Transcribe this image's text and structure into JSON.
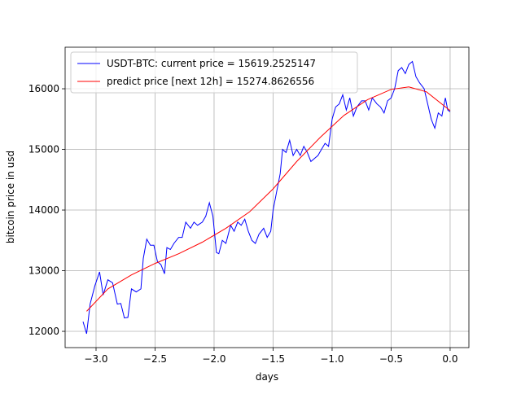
{
  "chart_data": {
    "type": "line",
    "xlabel": "days",
    "ylabel": "bitcoin price in usd",
    "xlim": [
      -3.262,
      0.159
    ],
    "ylim": [
      11732,
      16685
    ],
    "xticks": [
      {
        "value": -3.0,
        "label": "−3.0"
      },
      {
        "value": -2.5,
        "label": "−2.5"
      },
      {
        "value": -2.0,
        "label": "−2.0"
      },
      {
        "value": -1.5,
        "label": "−1.5"
      },
      {
        "value": -1.0,
        "label": "−1.0"
      },
      {
        "value": -0.5,
        "label": "−0.5"
      },
      {
        "value": 0.0,
        "label": "0.0"
      }
    ],
    "yticks": [
      12000,
      13000,
      14000,
      15000,
      16000
    ],
    "grid": true,
    "legend": "upper left",
    "series": [
      {
        "name": "USDT-BTC: current price = 15619.2525147",
        "color": "#0000ff",
        "x": [
          -3.11,
          -3.08,
          -3.05,
          -3.01,
          -2.97,
          -2.94,
          -2.9,
          -2.86,
          -2.82,
          -2.79,
          -2.76,
          -2.73,
          -2.7,
          -2.66,
          -2.62,
          -2.6,
          -2.57,
          -2.54,
          -2.51,
          -2.48,
          -2.45,
          -2.42,
          -2.4,
          -2.37,
          -2.34,
          -2.3,
          -2.27,
          -2.24,
          -2.2,
          -2.17,
          -2.14,
          -2.1,
          -2.07,
          -2.04,
          -2.01,
          -1.98,
          -1.96,
          -1.93,
          -1.9,
          -1.86,
          -1.83,
          -1.8,
          -1.77,
          -1.74,
          -1.71,
          -1.68,
          -1.65,
          -1.62,
          -1.58,
          -1.55,
          -1.52,
          -1.5,
          -1.47,
          -1.44,
          -1.42,
          -1.39,
          -1.36,
          -1.33,
          -1.3,
          -1.27,
          -1.24,
          -1.21,
          -1.18,
          -1.15,
          -1.12,
          -1.09,
          -1.06,
          -1.03,
          -1.0,
          -0.97,
          -0.94,
          -0.91,
          -0.88,
          -0.85,
          -0.82,
          -0.79,
          -0.75,
          -0.72,
          -0.69,
          -0.66,
          -0.62,
          -0.59,
          -0.56,
          -0.53,
          -0.5,
          -0.47,
          -0.44,
          -0.41,
          -0.38,
          -0.35,
          -0.32,
          -0.29,
          -0.26,
          -0.22,
          -0.19,
          -0.16,
          -0.13,
          -0.1,
          -0.07,
          -0.04,
          -0.02,
          0.0
        ],
        "values": [
          12160,
          11960,
          12450,
          12750,
          12980,
          12600,
          12850,
          12800,
          12450,
          12460,
          12220,
          12230,
          12700,
          12650,
          12700,
          13200,
          13520,
          13420,
          13420,
          13150,
          13100,
          12950,
          13380,
          13350,
          13450,
          13550,
          13550,
          13800,
          13700,
          13800,
          13750,
          13800,
          13900,
          14120,
          13900,
          13300,
          13280,
          13500,
          13450,
          13750,
          13650,
          13800,
          13750,
          13850,
          13650,
          13500,
          13450,
          13600,
          13700,
          13550,
          13650,
          14000,
          14300,
          14600,
          15000,
          14950,
          15150,
          14900,
          15000,
          14900,
          15050,
          14950,
          14800,
          14850,
          14900,
          15000,
          15100,
          15050,
          15500,
          15700,
          15750,
          15900,
          15650,
          15850,
          15550,
          15700,
          15800,
          15800,
          15650,
          15850,
          15750,
          15700,
          15600,
          15800,
          15850,
          16000,
          16300,
          16350,
          16250,
          16400,
          16450,
          16200,
          16100,
          16000,
          15750,
          15500,
          15350,
          15600,
          15550,
          15850,
          15650,
          15620
        ]
      },
      {
        "name": "predict price [next 12h] = 15274.8626556",
        "color": "#ff0000",
        "x": [
          -3.08,
          -2.9,
          -2.7,
          -2.5,
          -2.3,
          -2.1,
          -1.9,
          -1.7,
          -1.5,
          -1.3,
          -1.1,
          -0.9,
          -0.7,
          -0.5,
          -0.35,
          -0.2,
          0.0
        ],
        "values": [
          12330,
          12700,
          12930,
          13120,
          13280,
          13470,
          13700,
          13970,
          14350,
          14800,
          15200,
          15560,
          15820,
          15990,
          16030,
          15950,
          15640
        ]
      }
    ]
  }
}
